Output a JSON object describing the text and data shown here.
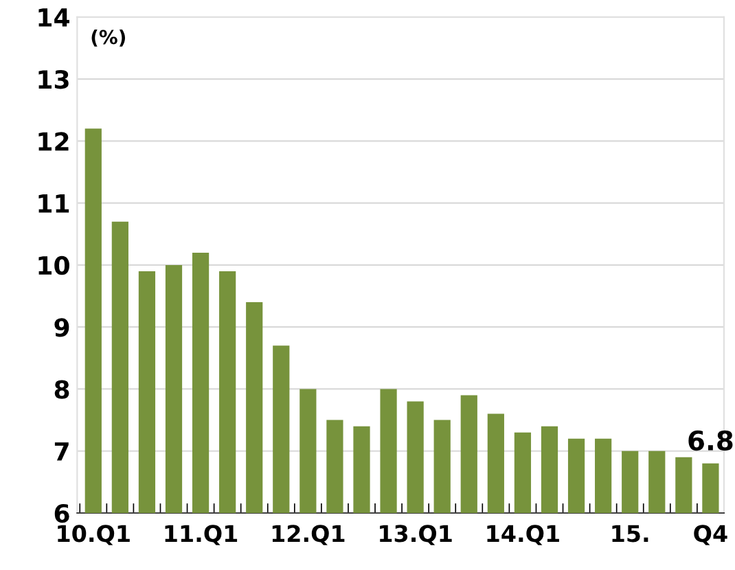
{
  "chart_data": {
    "type": "bar",
    "ylabel": "(%)",
    "categories": [
      "10.Q1",
      null,
      null,
      null,
      "11.Q1",
      null,
      null,
      null,
      "12.Q1",
      null,
      null,
      null,
      "13.Q1",
      null,
      null,
      null,
      "14.Q1",
      null,
      null,
      null,
      "15.",
      null,
      null,
      "Q4"
    ],
    "values": [
      12.2,
      10.7,
      9.9,
      10.0,
      10.2,
      9.9,
      9.4,
      8.7,
      8.0,
      7.5,
      7.4,
      8.0,
      7.8,
      7.5,
      7.9,
      7.6,
      7.3,
      7.4,
      7.2,
      7.2,
      7.0,
      7.0,
      6.9,
      6.8
    ],
    "value_labels": [
      null,
      null,
      null,
      null,
      null,
      null,
      null,
      null,
      null,
      null,
      null,
      null,
      null,
      null,
      null,
      null,
      null,
      null,
      null,
      null,
      null,
      null,
      null,
      "6.8"
    ],
    "color": "#77933c",
    "ylim": [
      6,
      14
    ],
    "yticks": [
      6,
      7,
      8,
      9,
      10,
      11,
      12,
      13,
      14
    ],
    "grid": "y",
    "legend": false
  }
}
